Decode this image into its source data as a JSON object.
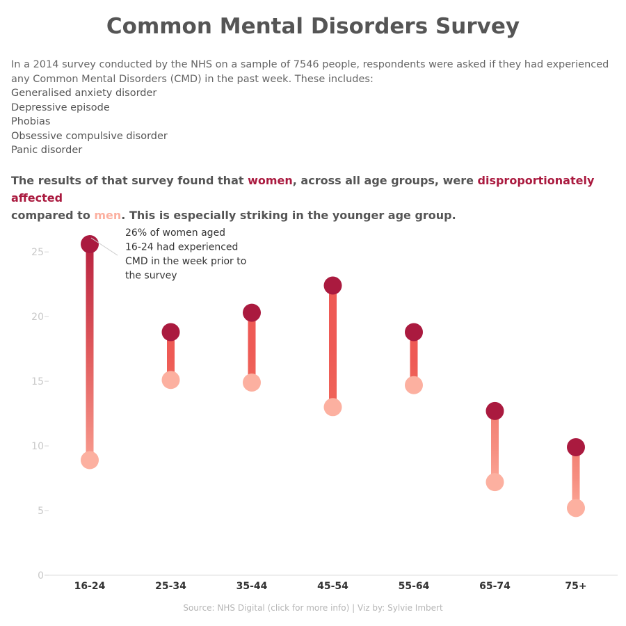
{
  "page": {
    "title": "Common Mental Disorders Survey",
    "intro": "In a 2014 survey conducted by the NHS on a sample of 7546 people, respondents were asked if they had experienced any Common Mental Disorders (CMD) in the past week. These includes:",
    "disorders": [
      "Generalised anxiety disorder",
      "Depressive episode",
      "Phobias",
      "Obsessive compulsive disorder",
      "Panic disorder"
    ],
    "headline": {
      "part1": "The results of that survey found that ",
      "women": "women",
      "part2": ", across all age groups, were ",
      "disproportionately": "disproportionately affected",
      "part3": "compared to ",
      "men": "men",
      "part4": ". This is especially striking in the younger age group."
    },
    "source": {
      "link": "Source: NHS Digital (click for more info)",
      "separator": "|",
      "credit": "Viz by: Sylvie Imbert"
    }
  },
  "colors": {
    "women": "#aa1a3f",
    "men": "#fcb0a0",
    "mid": "#ee5a55",
    "axis": "#cccccc",
    "text": "#555555"
  },
  "chart_data": {
    "type": "dumbbell",
    "categories": [
      "16-24",
      "25-34",
      "35-44",
      "45-54",
      "55-64",
      "65-74",
      "75+"
    ],
    "series": [
      {
        "name": "women",
        "values": [
          25.6,
          18.8,
          20.3,
          22.4,
          18.8,
          12.7,
          9.9
        ]
      },
      {
        "name": "men",
        "values": [
          8.9,
          15.1,
          14.9,
          13.0,
          14.7,
          7.2,
          5.2
        ]
      }
    ],
    "yticks": [
      0,
      5,
      10,
      15,
      20,
      25
    ],
    "ylim": [
      0,
      27.7
    ],
    "annotation": {
      "category": "16-24",
      "series": "women",
      "text": [
        " 26% of women aged",
        "16-24 had experienced",
        "CMD in the week prior to",
        "the survey"
      ]
    }
  }
}
